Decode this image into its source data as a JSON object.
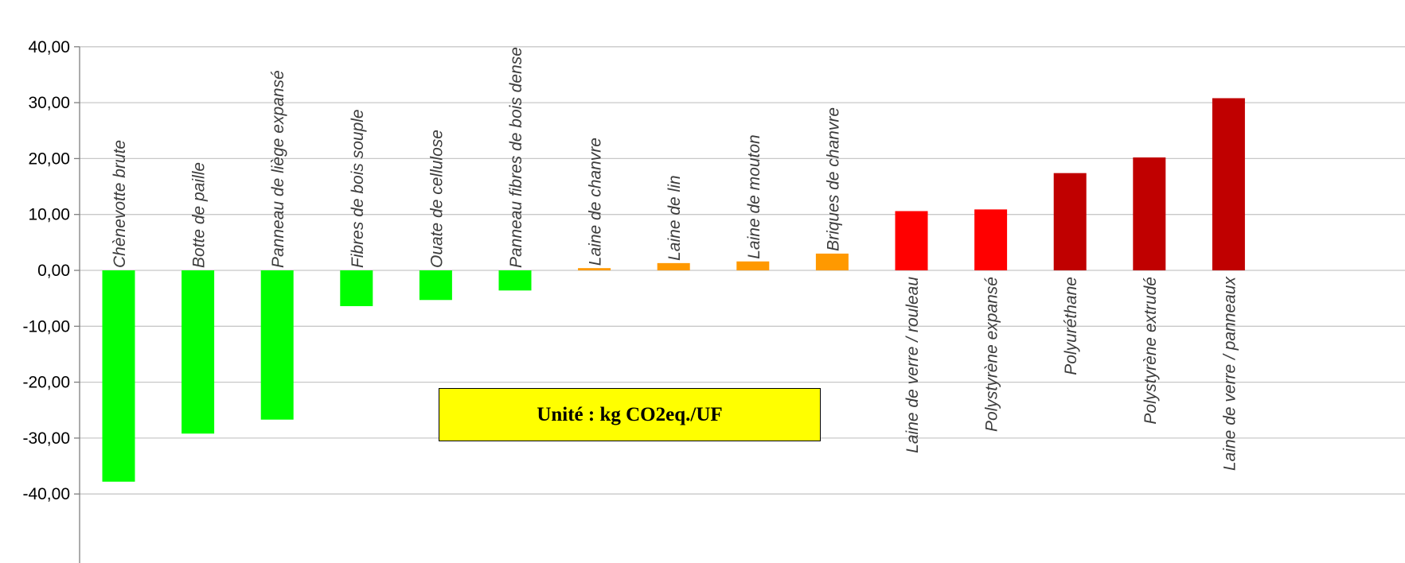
{
  "unit_box": {
    "text": "Unité : kg CO2eq./UF",
    "color": "#ffff00"
  },
  "chart_data": {
    "type": "bar",
    "title": "",
    "xlabel": "",
    "ylabel": "",
    "ylim": [
      -40,
      40
    ],
    "yticks": [
      40,
      30,
      20,
      10,
      0,
      -10,
      -20,
      -30,
      -40
    ],
    "ytick_labels": [
      "40,00",
      "30,00",
      "20,00",
      "10,00",
      "0,00",
      "-10,00",
      "-20,00",
      "-30,00",
      "-40,00"
    ],
    "grid": true,
    "categories": [
      "Chènevotte brute",
      "Botte de paille",
      "Panneau de liège expansé",
      "Fibres de bois souple",
      "Ouate de cellulose",
      "Panneau fibres de bois dense",
      "Laine de chanvre",
      "Laine de lin",
      "Laine de mouton",
      "Briques de chanvre",
      "Laine de verre / rouleau",
      "Polystyrène expansé",
      "Polyuréthane",
      "Polystyrène extrudé",
      "Laine de verre / panneaux"
    ],
    "values": [
      -37.8,
      -29.2,
      -26.7,
      -6.4,
      -5.3,
      -3.6,
      0.4,
      1.3,
      1.6,
      3.0,
      10.6,
      10.9,
      17.4,
      20.2,
      30.8
    ],
    "colors": [
      "#00ff00",
      "#00ff00",
      "#00ff00",
      "#00ff00",
      "#00ff00",
      "#00ff00",
      "#ff9900",
      "#ff9900",
      "#ff9900",
      "#ff9900",
      "#ff0000",
      "#ff0000",
      "#c00000",
      "#c00000",
      "#c00000"
    ],
    "grid_color": "#c8c8c8",
    "axis_color": "#7f7f7f"
  }
}
